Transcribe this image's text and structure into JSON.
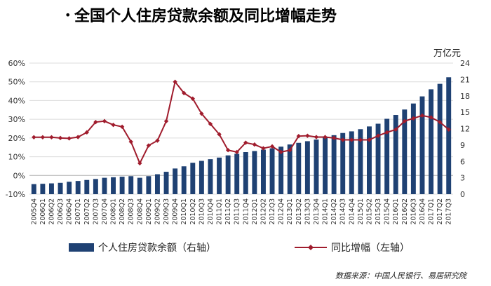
{
  "title": "全国个人住房贷款余额及同比增幅走势",
  "source": "数据来源：中国人民银行、易居研究院",
  "chart_data": {
    "type": "bar+line",
    "title": "全国个人住房贷款余额及同比增幅走势",
    "categories": [
      "2005Q4",
      "2006Q1",
      "2006Q2",
      "2006Q3",
      "2006Q4",
      "2007Q1",
      "2007Q2",
      "2007Q3",
      "2007Q4",
      "2008Q1",
      "2008Q2",
      "2008Q3",
      "2008Q4",
      "2009Q1",
      "2009Q2",
      "2009Q3",
      "2009Q4",
      "2010Q1",
      "2010Q2",
      "2010Q3",
      "2010Q4",
      "2011Q1",
      "2011Q2",
      "2011Q3",
      "2011Q4",
      "2012Q1",
      "2012Q2",
      "2012Q3",
      "2012Q4",
      "2013Q1",
      "2013Q2",
      "2013Q3",
      "2013Q4",
      "2014Q1",
      "2014Q2",
      "2014Q3",
      "2014Q4",
      "2015Q1",
      "2015Q2",
      "2015Q3",
      "2015Q4",
      "2016Q1",
      "2016Q2",
      "2016Q3",
      "2016Q4",
      "2017Q1",
      "2017Q2",
      "2017Q3"
    ],
    "y_left": {
      "min": -0.1,
      "max": 0.6,
      "ticks": [
        -0.1,
        0,
        0.1,
        0.2,
        0.3,
        0.4,
        0.5,
        0.6
      ],
      "tick_labels": [
        "-10%",
        "0%",
        "10%",
        "20%",
        "30%",
        "40%",
        "50%",
        "60%"
      ]
    },
    "y_right": {
      "label": "万亿元",
      "min": 0,
      "max": 24,
      "ticks": [
        0,
        3,
        6,
        9,
        12,
        15,
        18,
        21,
        24
      ],
      "tick_labels": [
        "0",
        "3",
        "6",
        "9",
        "12",
        "15",
        "18",
        "21",
        "24"
      ]
    },
    "series": [
      {
        "name": "个人住房贷款余额（右轴）",
        "type": "bar",
        "axis": "right",
        "color": "#1f4173",
        "values": [
          1.84,
          1.9,
          1.98,
          2.08,
          2.27,
          2.42,
          2.6,
          2.78,
          3.0,
          3.1,
          3.2,
          3.3,
          3.0,
          3.3,
          3.65,
          4.1,
          4.7,
          5.1,
          5.75,
          6.1,
          6.4,
          6.7,
          7.1,
          7.4,
          7.7,
          7.9,
          8.15,
          8.4,
          8.7,
          9.1,
          9.4,
          9.7,
          10.0,
          10.4,
          10.8,
          11.2,
          11.5,
          11.9,
          12.4,
          12.9,
          13.8,
          14.5,
          15.5,
          16.6,
          17.9,
          19.2,
          20.2,
          21.4
        ]
      },
      {
        "name": "同比增幅（左轴）",
        "type": "line",
        "axis": "left",
        "color": "#a01c2d",
        "values": [
          0.204,
          0.204,
          0.204,
          0.2,
          0.198,
          0.205,
          0.23,
          0.285,
          0.29,
          0.27,
          0.26,
          0.18,
          0.065,
          0.16,
          0.186,
          0.29,
          0.5,
          0.44,
          0.41,
          0.33,
          0.275,
          0.22,
          0.135,
          0.125,
          0.175,
          0.165,
          0.145,
          0.155,
          0.125,
          0.135,
          0.21,
          0.212,
          0.205,
          0.205,
          0.2,
          0.19,
          0.19,
          0.19,
          0.19,
          0.212,
          0.23,
          0.245,
          0.29,
          0.305,
          0.32,
          0.31,
          0.285,
          0.245
        ]
      }
    ],
    "legend": {
      "position": "bottom"
    },
    "grid": true
  }
}
